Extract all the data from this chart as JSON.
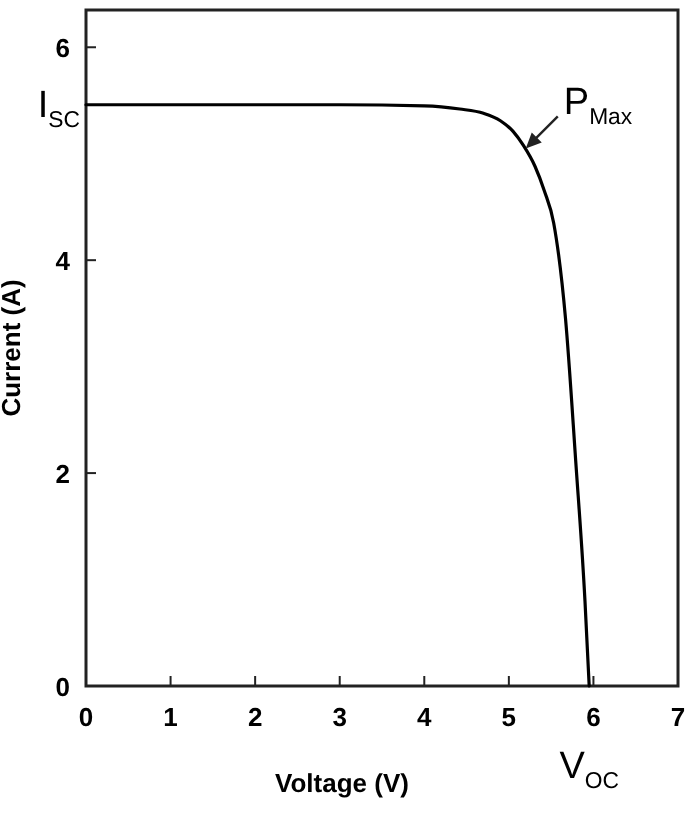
{
  "chart_data": {
    "type": "line",
    "xlabel": "Voltage (V)",
    "ylabel": "Current (A)",
    "x": [
      0,
      1,
      2,
      3,
      4,
      4.42,
      4.7,
      4.9,
      5.05,
      5.17,
      5.31,
      5.42,
      5.53,
      5.67,
      5.79,
      5.9,
      5.95
    ],
    "series": [
      {
        "color": "#000000",
        "values": [
          5.46,
          5.46,
          5.46,
          5.46,
          5.45,
          5.42,
          5.38,
          5.31,
          5.21,
          5.08,
          4.88,
          4.65,
          4.35,
          3.45,
          2.12,
          0.8,
          0
        ]
      }
    ],
    "xlim": [
      0,
      7
    ],
    "ylim": [
      0,
      6.35
    ],
    "xticks": [
      0,
      1,
      2,
      3,
      4,
      5,
      6,
      7
    ],
    "yticks": [
      0,
      2,
      4,
      6
    ],
    "marker": "none",
    "line_style": "solid",
    "annotations": [
      {
        "text": "I$_{SC}$",
        "x": 0,
        "y": 5.46
      },
      {
        "text": "P$_{Max}$",
        "x": 5.2,
        "y": 5.05
      },
      {
        "text": "V$_{OC}$",
        "x": 5.95,
        "y": 0
      }
    ]
  }
}
